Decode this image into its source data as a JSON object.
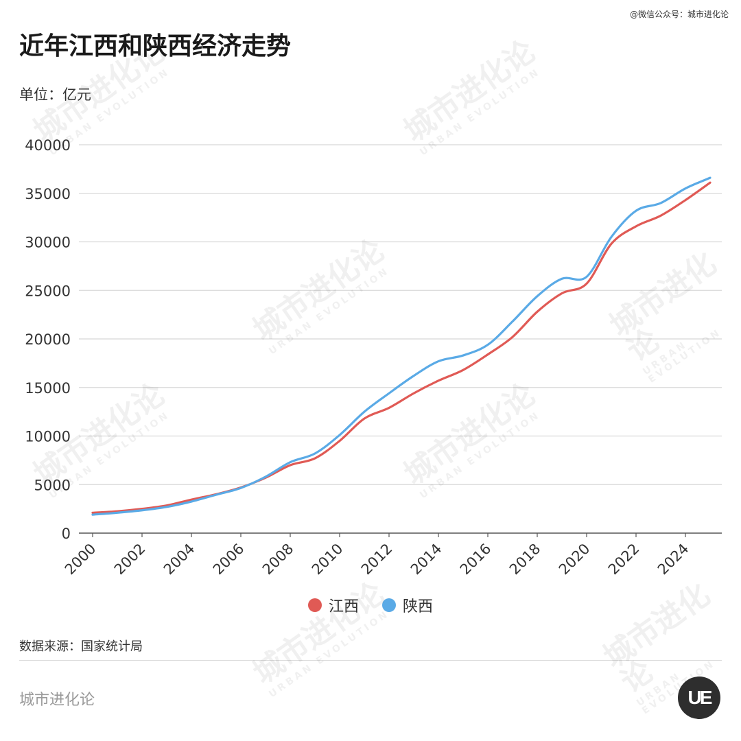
{
  "credit": "@微信公众号：城市进化论",
  "title": "近年江西和陕西经济走势",
  "unit": "单位：亿元",
  "source": "数据来源：国家统计局",
  "brand": "城市进化论",
  "logo_text": "UE",
  "watermark": {
    "cn": "城市进化论",
    "en": "URBAN EVOLUTION"
  },
  "chart_data": {
    "type": "line",
    "x": [
      2000,
      2001,
      2002,
      2003,
      2004,
      2005,
      2006,
      2007,
      2008,
      2009,
      2010,
      2011,
      2012,
      2013,
      2014,
      2015,
      2016,
      2017,
      2018,
      2019,
      2020,
      2021,
      2022,
      2023,
      2024,
      2025
    ],
    "x_ticks": [
      "2000",
      "2002",
      "2004",
      "2006",
      "2008",
      "2010",
      "2012",
      "2014",
      "2016",
      "2018",
      "2020",
      "2022",
      "2024"
    ],
    "y_ticks": [
      "0",
      "5000",
      "10000",
      "15000",
      "20000",
      "25000",
      "30000",
      "35000",
      "40000"
    ],
    "ylim": [
      0,
      40000
    ],
    "grid": true,
    "legend_position": "bottom",
    "series": [
      {
        "name": "江西",
        "color": "#e05a55",
        "values": [
          2100,
          2250,
          2500,
          2850,
          3450,
          4000,
          4700,
          5700,
          7000,
          7700,
          9500,
          11800,
          12900,
          14400,
          15700,
          16800,
          18400,
          20200,
          22800,
          24700,
          25700,
          29800,
          31600,
          32700,
          34300,
          36100
        ]
      },
      {
        "name": "陕西",
        "color": "#5aaae6",
        "values": [
          1900,
          2100,
          2350,
          2700,
          3250,
          3950,
          4650,
          5800,
          7300,
          8200,
          10100,
          12500,
          14400,
          16200,
          17700,
          18300,
          19400,
          21800,
          24400,
          26200,
          26400,
          30500,
          33200,
          34000,
          35500,
          36600
        ]
      }
    ]
  }
}
